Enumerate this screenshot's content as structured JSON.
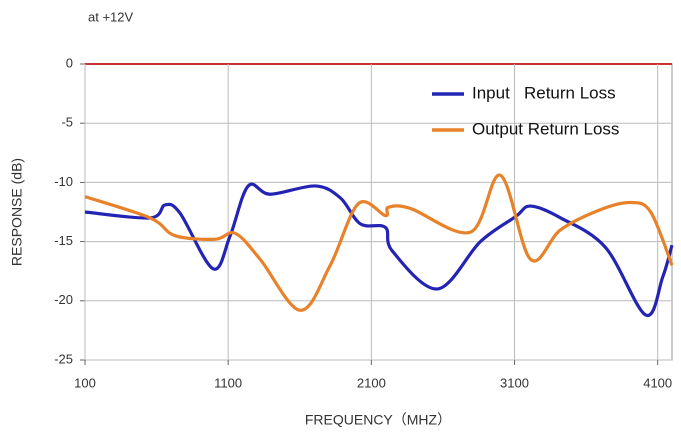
{
  "chart_data": {
    "type": "line",
    "title": "at +12V",
    "xlabel": "FREQUENCY（MHZ）",
    "ylabel": "RESPONSE (dB)",
    "xlim": [
      100,
      4200
    ],
    "ylim": [
      -25,
      0
    ],
    "xticks": [
      100,
      1100,
      2100,
      3100,
      4100
    ],
    "yticks": [
      0,
      -5,
      -10,
      -15,
      -20,
      -25
    ],
    "grid": true,
    "legend": "upper right",
    "series": [
      {
        "name": "Input   Return Loss",
        "color": "#2424b4",
        "x": [
          100,
          555,
          659,
          764,
          995,
          1114,
          1240,
          1394,
          1708,
          1883,
          2023,
          2198,
          2247,
          2562,
          2862,
          3107,
          3212,
          3422,
          3736,
          4016,
          4135,
          4200
        ],
        "values": [
          -12.5,
          -13.0,
          -11.9,
          -12.6,
          -17.3,
          -14.5,
          -10.3,
          -11.0,
          -10.3,
          -11.3,
          -13.5,
          -13.8,
          -15.8,
          -19.0,
          -15.0,
          -12.9,
          -12.0,
          -13.0,
          -15.5,
          -21.2,
          -18.0,
          -15.3
        ]
      },
      {
        "name": "Output Return Loss",
        "color": "#e8822a",
        "x": [
          100,
          555,
          729,
          1009,
          1149,
          1324,
          1603,
          1813,
          2009,
          2198,
          2219,
          2373,
          2792,
          3002,
          3212,
          3422,
          3701,
          3911,
          4051,
          4200
        ],
        "values": [
          -11.2,
          -13.0,
          -14.5,
          -14.8,
          -14.3,
          -16.5,
          -20.8,
          -17.0,
          -11.8,
          -12.8,
          -12.1,
          -12.2,
          -14.2,
          -9.4,
          -16.5,
          -14.0,
          -12.3,
          -11.7,
          -12.5,
          -17.0
        ]
      }
    ]
  }
}
